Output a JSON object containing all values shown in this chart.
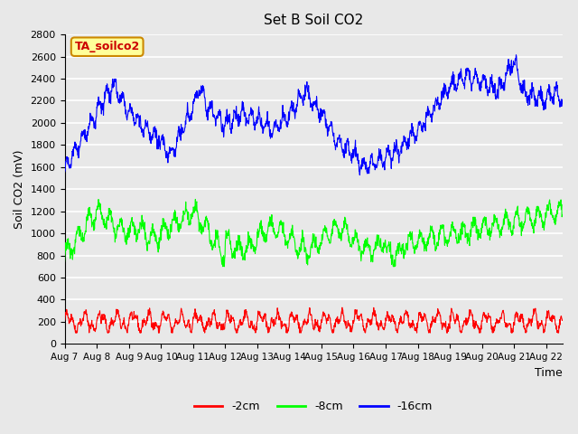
{
  "title": "Set B Soil CO2",
  "ylabel": "Soil CO2 (mV)",
  "xlabel": "Time",
  "xlim_days": [
    0,
    15.5
  ],
  "ylim": [
    0,
    2800
  ],
  "yticks": [
    0,
    200,
    400,
    600,
    800,
    1000,
    1200,
    1400,
    1600,
    1800,
    2000,
    2200,
    2400,
    2600,
    2800
  ],
  "xtick_labels": [
    "Aug 7",
    "Aug 8",
    "Aug 9",
    "Aug 10",
    "Aug 11",
    "Aug 12",
    "Aug 13",
    "Aug 14",
    "Aug 15",
    "Aug 16",
    "Aug 17",
    "Aug 18",
    "Aug 19",
    "Aug 20",
    "Aug 21",
    "Aug 22"
  ],
  "background_color": "#e8e8e8",
  "plot_bg_color": "#e8e8e8",
  "grid_color": "#ffffff",
  "line_colors": {
    "2cm": "#ff0000",
    "8cm": "#00ff00",
    "16cm": "#0000ff"
  },
  "legend_labels": [
    "-2cm",
    "-8cm",
    "-16cm"
  ],
  "legend_colors": [
    "#ff0000",
    "#00ff00",
    "#0000ff"
  ],
  "annotation_text": "TA_soilco2",
  "annotation_bg": "#ffff99",
  "annotation_border": "#cc8800"
}
